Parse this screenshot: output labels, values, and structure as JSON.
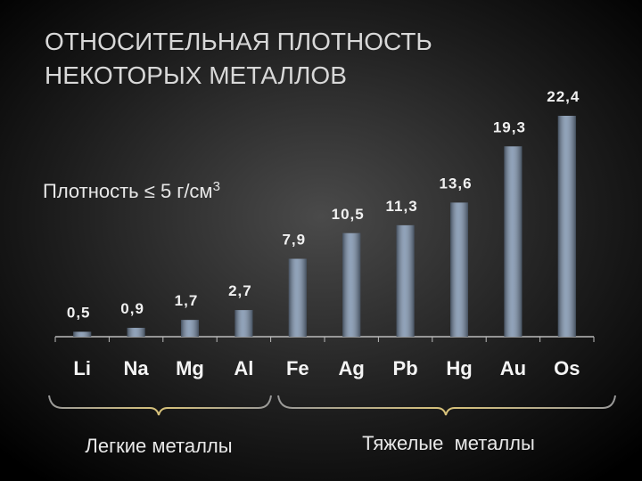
{
  "chart_data": {
    "type": "bar",
    "title": [
      "ОТНОСИТЕЛЬНАЯ ПЛОТНОСТЬ",
      "НЕКОТОРЫХ МЕТАЛЛОВ"
    ],
    "categories": [
      "Li",
      "Na",
      "Mg",
      "Al",
      "Fe",
      "Ag",
      "Pb",
      "Hg",
      "Au",
      "Os"
    ],
    "values": [
      0.5,
      0.9,
      1.7,
      2.7,
      7.9,
      10.5,
      11.3,
      13.6,
      19.3,
      22.4
    ],
    "value_labels": [
      "0,5",
      "0,9",
      "1,7",
      "2,7",
      "7,9",
      "10,5",
      "11,3",
      "13,6",
      "19,3",
      "22,4"
    ],
    "color": "#7d92ad",
    "annotation": {
      "text": "Плотность ≤ 5 г/см",
      "superscript": "3"
    },
    "groups": [
      "Легкие металлы",
      "Тяжелые  металлы"
    ]
  }
}
